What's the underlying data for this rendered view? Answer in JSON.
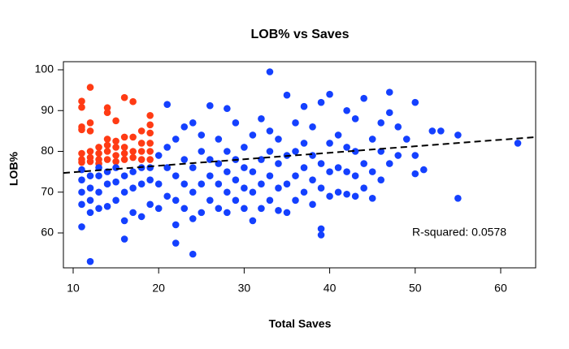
{
  "chart_data": {
    "type": "scatter",
    "title": "LOB% vs Saves",
    "x_label": "Total Saves",
    "y_label": "LOB%",
    "xlim": [
      8.86,
      64.09
    ],
    "ylim": [
      51.44,
      101.99
    ],
    "xticks": [
      10,
      20,
      30,
      40,
      50,
      60
    ],
    "yticks": [
      60,
      70,
      80,
      90,
      100
    ],
    "grid": false,
    "annotation": "R-squared: 0.0578",
    "trendline": {
      "color": "#000000",
      "x": [
        8.86,
        64.09
      ],
      "y": [
        74.7,
        83.5
      ]
    },
    "series": [
      {
        "color": "#ff3b14",
        "x": [
          11,
          11,
          11,
          11,
          11,
          11,
          11,
          12,
          12,
          12,
          12,
          12,
          12,
          13,
          13,
          13,
          13,
          14,
          14,
          14,
          14,
          14,
          14,
          15,
          15,
          15,
          15,
          15,
          16,
          16,
          16,
          16,
          16,
          17,
          17,
          17,
          17,
          18,
          18,
          18,
          18,
          19,
          19,
          19,
          19,
          19,
          19
        ],
        "y": [
          92.3,
          90.8,
          86,
          85.3,
          79.5,
          78,
          77.3,
          95.7,
          87,
          85,
          80,
          78.5,
          77.5,
          81,
          79.5,
          78,
          77,
          90.7,
          89.5,
          83,
          81.5,
          80,
          78,
          87.5,
          82.5,
          81,
          79,
          77.5,
          93.2,
          83.5,
          81,
          79.5,
          78,
          92.2,
          83.5,
          80,
          78.5,
          85,
          82,
          80,
          78,
          88.8,
          86.5,
          84.5,
          82,
          80,
          78
        ]
      },
      {
        "color": "#1440ff",
        "x": [
          11,
          11,
          11,
          11,
          11,
          12,
          12,
          12,
          12,
          12,
          13,
          13,
          13,
          13,
          14,
          14,
          14,
          15,
          15,
          15,
          16,
          16,
          16,
          16,
          17,
          17,
          17,
          18,
          18,
          18,
          19,
          19,
          19,
          20,
          20,
          20,
          21,
          21,
          21,
          21,
          22,
          22,
          22,
          22,
          22,
          23,
          23,
          23,
          23,
          24,
          24,
          24,
          24,
          24,
          25,
          25,
          25,
          25,
          26,
          26,
          26,
          26,
          27,
          27,
          27,
          27,
          28,
          28,
          28,
          28,
          28,
          29,
          29,
          29,
          29,
          30,
          30,
          30,
          30,
          31,
          31,
          31,
          31,
          32,
          32,
          32,
          32,
          33,
          33,
          33,
          33,
          33,
          34,
          34,
          34,
          34,
          35,
          35,
          35,
          35,
          36,
          36,
          36,
          36,
          37,
          37,
          37,
          37,
          38,
          38,
          38,
          38,
          39,
          39,
          39,
          39,
          39,
          40,
          40,
          40,
          40,
          41,
          41,
          41,
          42,
          42,
          42,
          42,
          43,
          43,
          43,
          43,
          44,
          44,
          44,
          45,
          45,
          45,
          46,
          46,
          46,
          47,
          47,
          47,
          48,
          48,
          49,
          50,
          50,
          50,
          51,
          52,
          53,
          55,
          55,
          62
        ],
        "y": [
          61.5,
          67,
          70,
          73,
          75.5,
          53,
          65,
          68,
          71,
          74,
          66,
          70,
          74,
          76,
          66.5,
          72,
          75,
          68,
          72.5,
          76,
          58.5,
          63,
          70,
          74,
          65,
          71,
          75,
          64,
          72,
          76,
          67,
          73,
          76,
          66,
          72,
          79,
          69,
          76,
          91.5,
          81,
          57.5,
          62,
          68,
          74,
          83,
          66,
          72,
          78,
          86,
          54.8,
          63.5,
          70,
          76,
          87,
          65,
          72,
          80,
          84,
          68,
          74,
          78,
          91.2,
          66,
          72,
          77,
          83,
          65,
          70,
          75,
          80,
          90.5,
          68,
          73,
          78,
          87,
          66,
          71,
          76,
          81,
          63,
          70,
          75,
          84,
          66,
          72,
          78,
          88,
          99.5,
          68,
          74,
          80,
          85,
          65.5,
          71,
          77,
          83,
          65,
          72,
          79,
          93.8,
          68,
          74,
          80,
          87,
          70,
          76,
          82,
          91,
          67,
          73,
          79,
          86,
          59.5,
          61,
          71,
          77,
          92,
          69,
          75,
          82,
          94,
          70,
          76,
          84,
          69.5,
          75,
          81,
          90,
          69,
          74,
          80,
          88,
          71,
          77,
          93,
          68.5,
          75,
          83,
          73,
          80,
          87,
          77,
          89.5,
          94.5,
          79,
          86,
          83,
          74.5,
          79,
          92,
          75.5,
          85,
          85,
          68.5,
          84,
          82
        ]
      }
    ]
  }
}
